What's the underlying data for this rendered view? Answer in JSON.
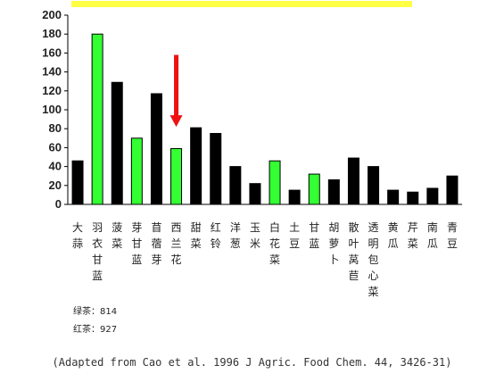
{
  "chart_data": {
    "type": "bar",
    "ylim": [
      0,
      200
    ],
    "yticks": [
      0,
      20,
      40,
      60,
      80,
      100,
      120,
      140,
      160,
      180,
      200
    ],
    "grid": false,
    "categories": [
      "大蒜",
      "羽衣甘蓝",
      "菠菜",
      "芽甘蓝",
      "苜蓿芽",
      "西兰花",
      "甜菜",
      "红铃",
      "洋葱",
      "玉米",
      "白花菜",
      "土豆",
      "甘蓝",
      "胡萝卜",
      "散叶莴苣",
      "透明包心菜",
      "黄瓜",
      "芹菜",
      "南瓜",
      "青豆"
    ],
    "values": [
      46,
      180,
      129,
      70,
      117,
      59,
      81,
      75,
      40,
      22,
      46,
      15,
      32,
      26,
      49,
      40,
      15,
      13,
      17,
      30
    ],
    "bar_colors": [
      "#000000",
      "#33ff33",
      "#000000",
      "#33ff33",
      "#000000",
      "#33ff33",
      "#000000",
      "#000000",
      "#000000",
      "#000000",
      "#33ff33",
      "#000000",
      "#33ff33",
      "#000000",
      "#000000",
      "#000000",
      "#000000",
      "#000000",
      "#000000",
      "#000000"
    ],
    "arrow": {
      "category": "西兰花",
      "color": "#ee1111",
      "from_value": 158,
      "to_value": 82
    },
    "top_bar_color": "#ffff44"
  },
  "legend": {
    "green_tea": "绿茶：814",
    "black_tea": "红茶：927"
  },
  "caption": "(Adapted from Cao et al. 1996 J Agric. Food Chem. 44, 3426-31)"
}
